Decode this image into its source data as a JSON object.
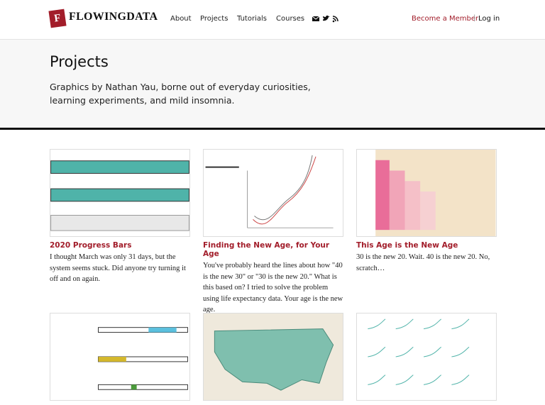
{
  "header": {
    "logo": "FLOWINGDATA",
    "nav": [
      "About",
      "Projects",
      "Tutorials",
      "Courses"
    ],
    "member": "Become a Member",
    "separator": "|",
    "login": "Log in"
  },
  "page": {
    "title": "Projects",
    "description": "Graphics by Nathan Yau, borne out of everyday curiosities, learning experiments, and mild insomnia."
  },
  "cards": [
    {
      "title": "2020 Progress Bars",
      "description": "I thought March was only 31 days, but the system seems stuck. Did anyone try turning it off and on again."
    },
    {
      "title": "Finding the New Age, for Your Age",
      "description": "You've probably heard the lines about how \"40 is the new 30\" or \"30 is the new 20.\" What is this based on? I tried to solve the problem using life expectancy data. Your age is the new age."
    },
    {
      "title": "This Age is the New Age",
      "description": "30 is the new 20. Wait. 40 is the new 20. No, scratch…"
    }
  ]
}
